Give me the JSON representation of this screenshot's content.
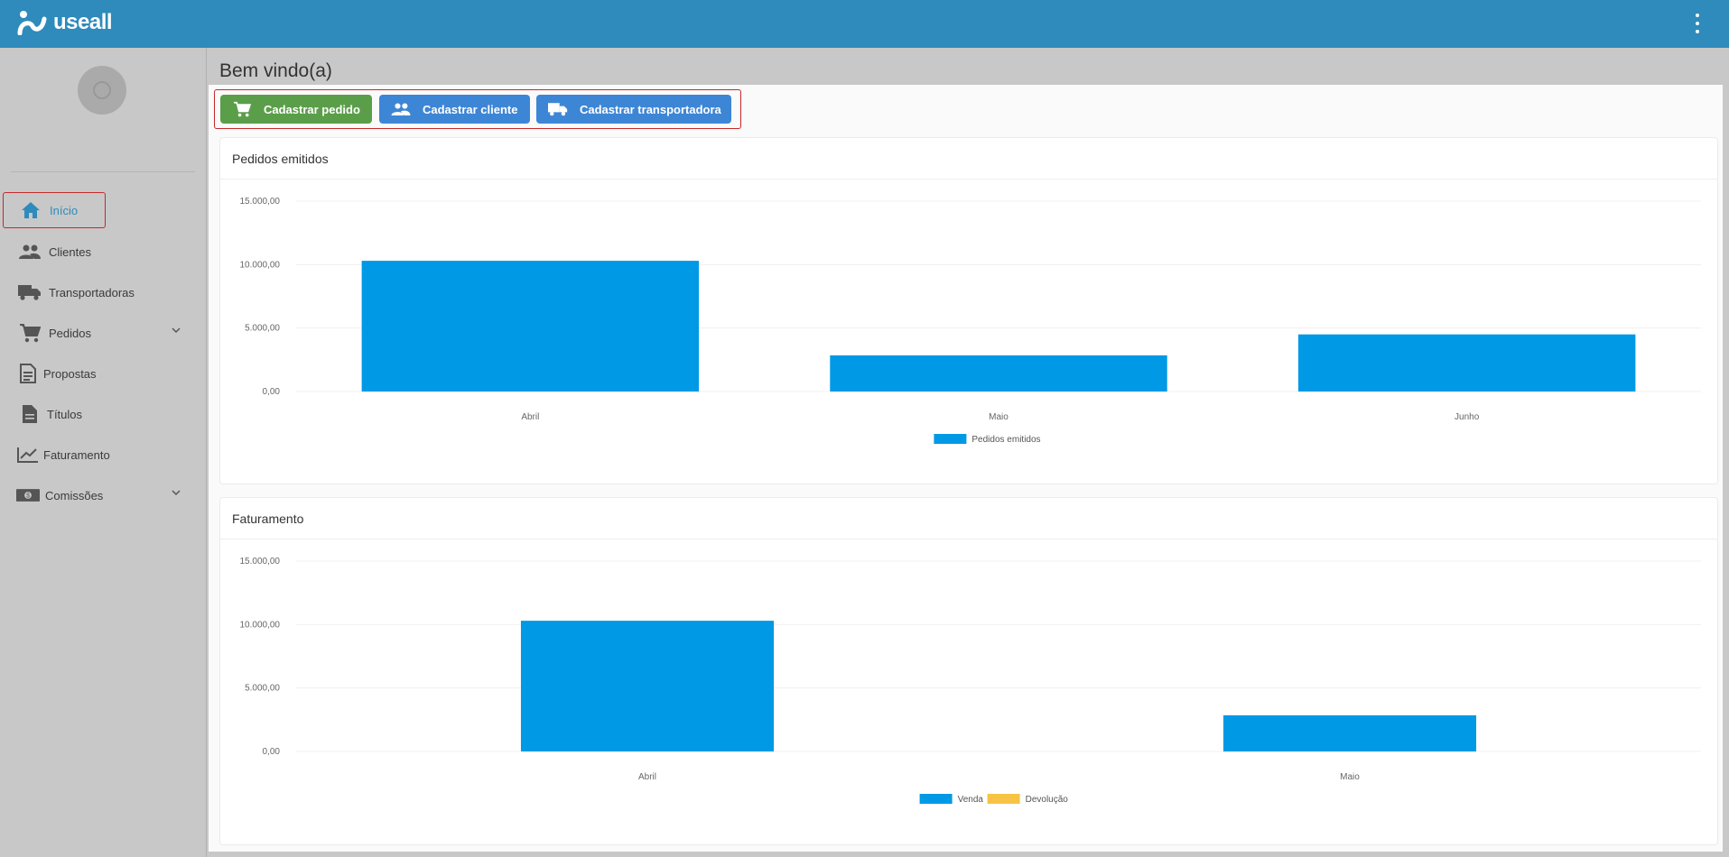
{
  "app": {
    "logo_text": "useall"
  },
  "colors": {
    "topbar": "#2e8bbb",
    "accent": "#2e8bbb",
    "bar_primary": "#0099e5",
    "bar_secondary": "#f6c344",
    "btn_green": "#5b9e4a",
    "btn_blue": "#3d86d6"
  },
  "sidebar": {
    "items": [
      {
        "label": "Início",
        "icon": "home-icon",
        "active": true
      },
      {
        "label": "Clientes",
        "icon": "people-icon"
      },
      {
        "label": "Transportadoras",
        "icon": "truck-icon"
      },
      {
        "label": "Pedidos",
        "icon": "cart-icon",
        "expandable": true
      },
      {
        "label": "Propostas",
        "icon": "document-icon"
      },
      {
        "label": "Títulos",
        "icon": "file-icon"
      },
      {
        "label": "Faturamento",
        "icon": "trending-up-icon"
      },
      {
        "label": "Comissões",
        "icon": "money-icon",
        "expandable": true
      }
    ]
  },
  "main": {
    "title": "Bem vindo(a)",
    "actions": {
      "new_order": "Cadastrar pedido",
      "new_client": "Cadastrar cliente",
      "new_carrier": "Cadastrar transportadora"
    },
    "orders_card": {
      "title": "Pedidos emitidos"
    },
    "billing_card": {
      "title": "Faturamento"
    }
  },
  "chart_data": [
    {
      "type": "bar",
      "title": "Pedidos emitidos",
      "categories": [
        "Abril",
        "Maio",
        "Junho"
      ],
      "series": [
        {
          "name": "Pedidos emitidos",
          "values": [
            10300,
            2850,
            4500
          ],
          "color": "#0099e5"
        }
      ],
      "ylim": [
        0,
        15000
      ],
      "yticks": [
        "0,00",
        "5.000,00",
        "10.000,00",
        "15.000,00"
      ],
      "grid": true,
      "legend": "bottom-center"
    },
    {
      "type": "bar",
      "title": "Faturamento",
      "categories": [
        "Abril",
        "Maio"
      ],
      "series": [
        {
          "name": "Venda",
          "values": [
            10300,
            2850
          ],
          "color": "#0099e5"
        },
        {
          "name": "Devolução",
          "values": [
            0,
            0
          ],
          "color": "#f6c344"
        }
      ],
      "ylim": [
        0,
        15000
      ],
      "yticks": [
        "0,00",
        "5.000,00",
        "10.000,00",
        "15.000,00"
      ],
      "grid": true,
      "legend": "bottom-center"
    }
  ]
}
